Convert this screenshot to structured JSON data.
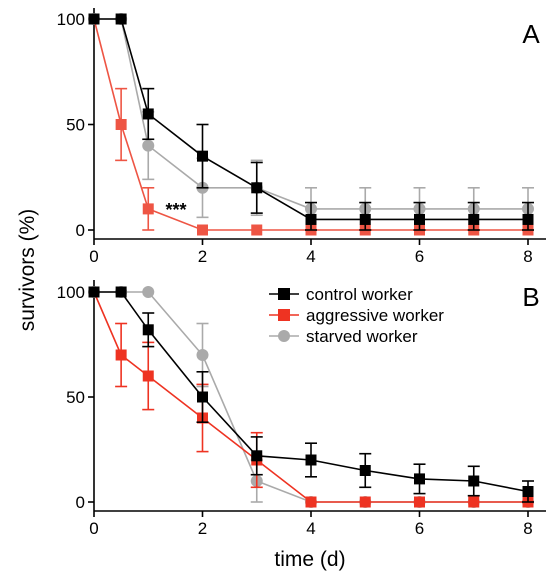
{
  "figure": {
    "ylabel": "survivors (%)",
    "xlabel": "time (d)"
  },
  "legend": {
    "placement": "top-right of panel B",
    "entries": [
      {
        "name": "control worker",
        "color": "#000000",
        "marker": "square"
      },
      {
        "name": "aggressive worker",
        "color": "#ee3322",
        "marker": "square"
      },
      {
        "name": "starved worker",
        "color": "#aaaaaa",
        "marker": "circle"
      }
    ]
  },
  "chart_data": [
    {
      "type": "line",
      "panel": "A",
      "xlim": [
        0,
        8.3
      ],
      "ylim": [
        0,
        100
      ],
      "xticks": [
        0,
        2,
        4,
        6,
        8
      ],
      "yticks": [
        0,
        50,
        100
      ],
      "annotations": [
        {
          "text": "***",
          "x": 1.35,
          "y": 10
        }
      ],
      "series": [
        {
          "name": "control worker",
          "color": "#000000",
          "marker": "square",
          "x": [
            0,
            0.5,
            1,
            2,
            3,
            4,
            5,
            6,
            7,
            8
          ],
          "y": [
            100,
            100,
            55,
            35,
            20,
            5,
            5,
            5,
            5,
            5
          ],
          "err": [
            0,
            0,
            12,
            15,
            12,
            8,
            8,
            8,
            8,
            8
          ]
        },
        {
          "name": "aggressive worker",
          "color": "#ee5544",
          "marker": "square",
          "x": [
            0,
            0.5,
            1,
            2,
            3,
            4,
            5,
            6,
            7,
            8
          ],
          "y": [
            100,
            50,
            10,
            0,
            0,
            0,
            0,
            0,
            0,
            0
          ],
          "err": [
            0,
            17,
            10,
            0,
            0,
            0,
            0,
            0,
            0,
            0
          ]
        },
        {
          "name": "starved worker",
          "color": "#aaaaaa",
          "marker": "circle",
          "x": [
            0,
            0.5,
            1,
            2,
            3,
            4,
            5,
            6,
            7,
            8
          ],
          "y": [
            100,
            100,
            40,
            20,
            20,
            10,
            10,
            10,
            10,
            10
          ],
          "err": [
            0,
            0,
            16,
            14,
            13,
            10,
            10,
            10,
            10,
            10
          ]
        }
      ]
    },
    {
      "type": "line",
      "panel": "B",
      "xlim": [
        0,
        8.3
      ],
      "ylim": [
        0,
        100
      ],
      "xticks": [
        0,
        2,
        4,
        6,
        8
      ],
      "yticks": [
        0,
        50,
        100
      ],
      "series": [
        {
          "name": "control worker",
          "color": "#000000",
          "marker": "square",
          "x": [
            0,
            0.5,
            1,
            2,
            3,
            4,
            5,
            6,
            7,
            8
          ],
          "y": [
            100,
            100,
            82,
            50,
            22,
            20,
            15,
            11,
            10,
            5
          ],
          "err": [
            0,
            0,
            8,
            12,
            9,
            8,
            8,
            7,
            7,
            5
          ]
        },
        {
          "name": "aggressive worker",
          "color": "#ee3322",
          "marker": "square",
          "x": [
            0,
            0.5,
            1,
            2,
            3,
            4,
            5,
            6,
            7,
            8
          ],
          "y": [
            100,
            70,
            60,
            40,
            20,
            0,
            0,
            0,
            0,
            0
          ],
          "err": [
            0,
            15,
            16,
            16,
            13,
            0,
            0,
            0,
            0,
            0
          ]
        },
        {
          "name": "starved worker",
          "color": "#aaaaaa",
          "marker": "circle",
          "x": [
            0,
            0.5,
            1,
            2,
            3,
            4,
            5,
            6,
            7,
            8
          ],
          "y": [
            100,
            100,
            100,
            70,
            10,
            0,
            0,
            0,
            0,
            0
          ],
          "err": [
            0,
            0,
            0,
            15,
            10,
            0,
            0,
            0,
            0,
            0
          ]
        }
      ]
    }
  ]
}
